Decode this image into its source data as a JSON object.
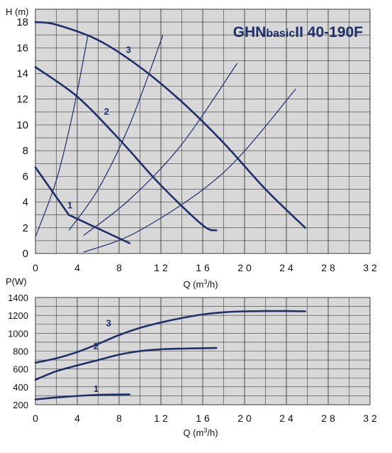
{
  "colors": {
    "plot_bg": "#d8d8d8",
    "grid": "#3a3a3a",
    "curve": "#1f2f6b",
    "text": "#111111",
    "title": "#1f2f6b"
  },
  "chart_data": [
    {
      "type": "line",
      "title_main": "GHN",
      "title_sub": "basic",
      "title_tail": "II  40-190F",
      "ylabel": "H (m)",
      "xlabel_prefix": "Q (m",
      "xlabel_sup": "3",
      "xlabel_suffix": "/h)",
      "xlim": [
        0,
        32
      ],
      "ylim": [
        0,
        19
      ],
      "xticks": [
        0,
        4,
        8,
        12,
        16,
        20,
        24,
        28,
        32
      ],
      "xtick_labels": [
        "0",
        "4",
        "8",
        "1 2",
        "1 6",
        "2 0",
        "2 4",
        "2 8",
        "3 2"
      ],
      "yticks": [
        0,
        2,
        4,
        6,
        8,
        10,
        12,
        14,
        16,
        18
      ],
      "ytick_labels": [
        "0",
        "2",
        "4",
        "6",
        "8",
        "10",
        "12",
        "14",
        "16",
        "18"
      ],
      "grid": true,
      "series": [
        {
          "name": "1",
          "label_at": [
            3.3,
            3.5
          ],
          "x": [
            0,
            3.2,
            9
          ],
          "y": [
            6.7,
            3.0,
            0.8
          ]
        },
        {
          "name": "2",
          "label_at": [
            6.8,
            10.8
          ],
          "x": [
            0,
            4,
            8,
            12,
            16,
            17.3
          ],
          "y": [
            14.5,
            12.2,
            8.9,
            5.3,
            2.2,
            1.8
          ]
        },
        {
          "name": "3",
          "label_at": [
            8.9,
            15.6
          ],
          "x": [
            0,
            2,
            6,
            10,
            14,
            18,
            22,
            25.8
          ],
          "y": [
            18.0,
            17.8,
            16.6,
            14.5,
            11.8,
            8.6,
            5.0,
            2.0
          ]
        }
      ],
      "system_curves": [
        {
          "x": [
            0,
            2,
            3.6,
            5
          ],
          "y": [
            1.3,
            5.7,
            11.0,
            16.9
          ]
        },
        {
          "x": [
            3.2,
            6,
            9,
            12.2
          ],
          "y": [
            1.8,
            5.0,
            10.0,
            17.0
          ]
        },
        {
          "x": [
            4.6,
            9,
            14,
            19.3
          ],
          "y": [
            1.4,
            4.2,
            8.5,
            14.8
          ]
        },
        {
          "x": [
            4.6,
            10,
            18,
            24.9
          ],
          "y": [
            0.1,
            1.8,
            6.3,
            12.8
          ]
        }
      ]
    },
    {
      "type": "line",
      "ylabel": "P(W)",
      "xlabel_prefix": "Q (m",
      "xlabel_sup": "3",
      "xlabel_suffix": "/h)",
      "xlim": [
        0,
        32
      ],
      "ylim": [
        200,
        1400
      ],
      "xticks": [
        0,
        4,
        8,
        12,
        16,
        20,
        24,
        28,
        32
      ],
      "xtick_labels": [
        "0",
        "4",
        "8",
        "1 2",
        "1 6",
        "2 0",
        "2 4",
        "2 8",
        "3 2"
      ],
      "yticks": [
        200,
        400,
        600,
        800,
        1000,
        1200,
        1400
      ],
      "ytick_labels": [
        "200",
        "400",
        "600",
        "800",
        "1000",
        "1200",
        "1400"
      ],
      "grid": true,
      "series": [
        {
          "name": "1",
          "label_at": [
            5.8,
            345
          ],
          "x": [
            0,
            3,
            6,
            9
          ],
          "y": [
            260,
            290,
            310,
            315
          ]
        },
        {
          "name": "2",
          "label_at": [
            5.8,
            818
          ],
          "x": [
            0,
            2,
            4,
            6,
            8,
            10,
            12,
            14,
            17.3
          ],
          "y": [
            480,
            575,
            640,
            700,
            760,
            800,
            820,
            828,
            835
          ]
        },
        {
          "name": "3",
          "label_at": [
            7.0,
            1080
          ],
          "x": [
            0,
            2,
            4,
            6,
            8,
            10,
            12,
            14,
            16,
            18,
            20,
            22,
            24,
            25.8
          ],
          "y": [
            670,
            720,
            790,
            880,
            980,
            1060,
            1120,
            1170,
            1210,
            1235,
            1245,
            1248,
            1248,
            1245
          ]
        }
      ]
    }
  ]
}
